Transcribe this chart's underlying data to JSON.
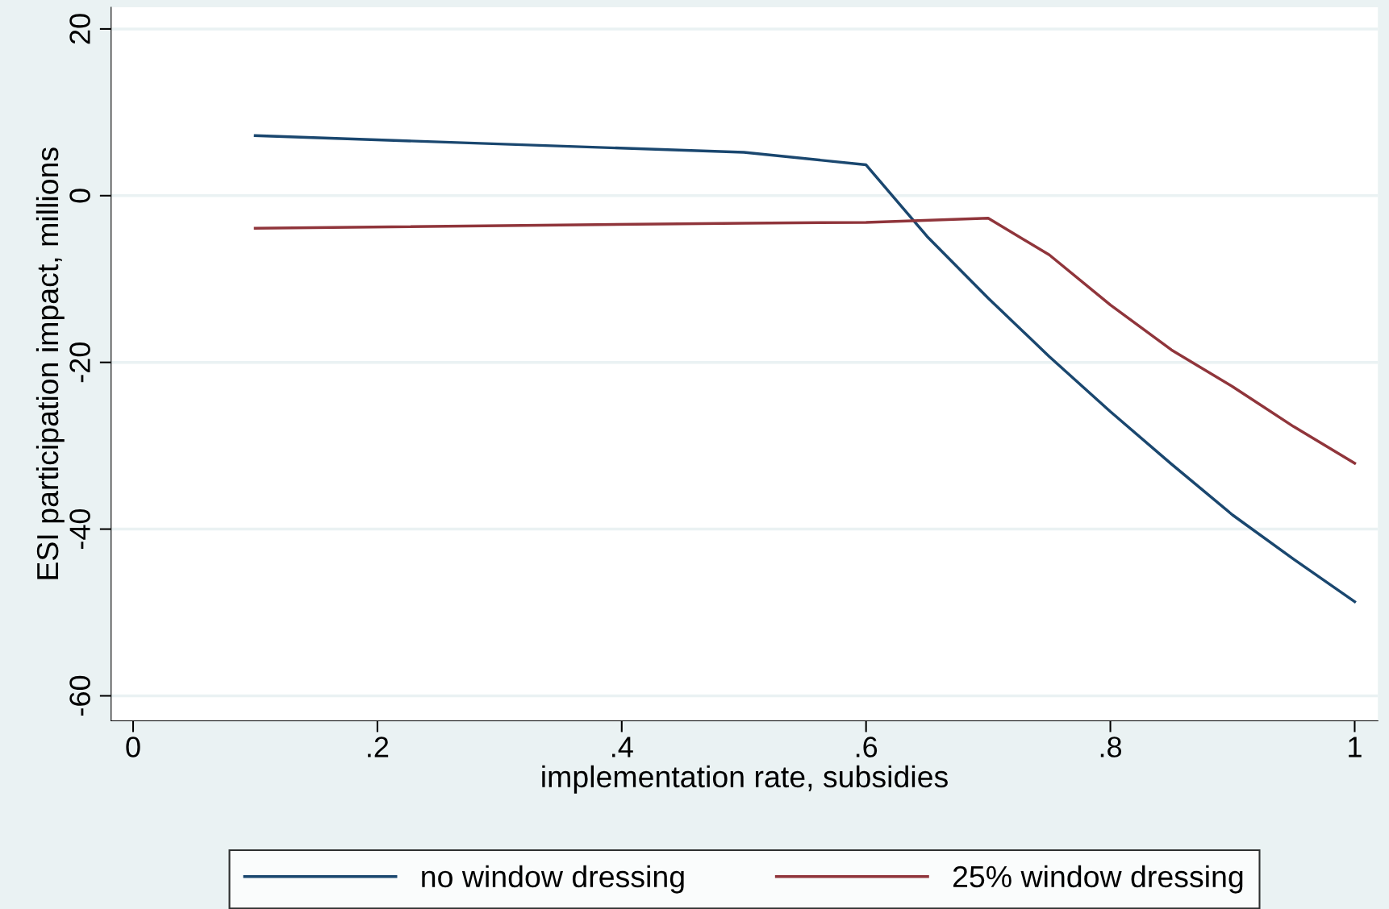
{
  "chart_data": {
    "type": "line",
    "xlabel": "implementation rate, subsidies",
    "ylabel": "ESI participation impact, millions",
    "xlim": [
      -0.018,
      1.019
    ],
    "ylim": [
      -63,
      22.6
    ],
    "xticks": [
      {
        "value": 0,
        "label": "0"
      },
      {
        "value": 0.2,
        "label": ".2"
      },
      {
        "value": 0.4,
        "label": ".4"
      },
      {
        "value": 0.6,
        "label": ".6"
      },
      {
        "value": 0.8,
        "label": ".8"
      },
      {
        "value": 1,
        "label": "1"
      }
    ],
    "yticks": [
      20,
      0,
      -20,
      -40,
      -60
    ],
    "grid": "y",
    "legend": "bottom",
    "marker": "none",
    "line_style": "solid",
    "series": [
      {
        "name": "no window dressing",
        "color": "#1a476f",
        "x": [
          0.1,
          0.5,
          0.6,
          0.65,
          0.7,
          0.75,
          0.8,
          0.85,
          0.9,
          0.95,
          1
        ],
        "values": [
          7.2,
          5.2,
          3.7,
          -4.9,
          -12.3,
          -19.3,
          -25.9,
          -32.2,
          -38.3,
          -43.6,
          -48.7
        ]
      },
      {
        "name": "25% window dressing",
        "color": "#90353b",
        "x": [
          0.1,
          0.5,
          0.6,
          0.7,
          0.75,
          0.8,
          0.85,
          0.9,
          0.95,
          1
        ],
        "values": [
          -3.9,
          -3.3,
          -3.2,
          -2.7,
          -7.1,
          -13.1,
          -18.5,
          -22.9,
          -27.7,
          -32.1
        ]
      }
    ]
  }
}
